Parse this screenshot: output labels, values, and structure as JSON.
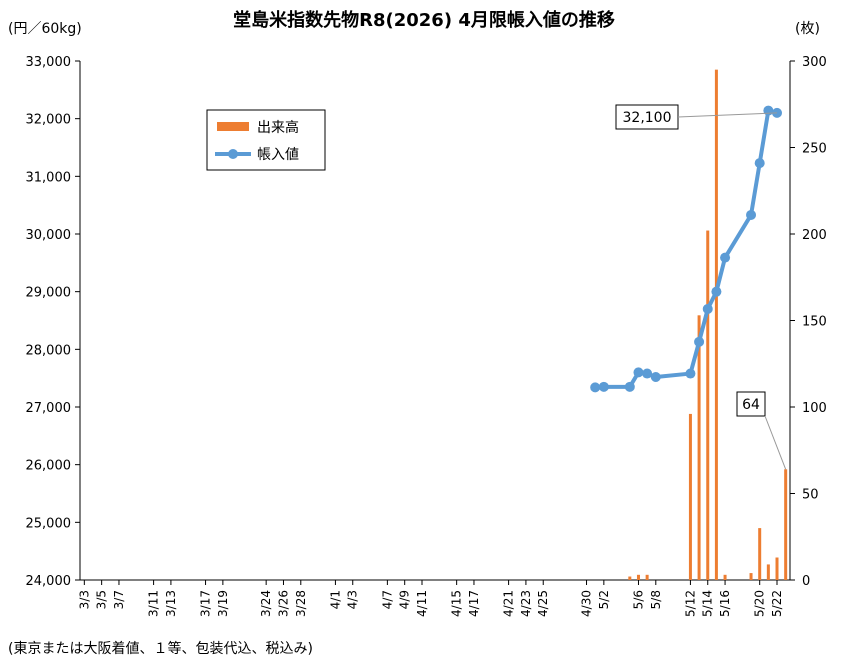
{
  "chart_data": {
    "type": "bar+line",
    "title": "堂島米指数先物R8(2026) 4月限帳入値の推移",
    "left_axis_unit": "(円／60kg)",
    "right_axis_unit": "(枚)",
    "footnote": "(東京または大阪着値、１等、包装代込、税込み)",
    "left_ylim": [
      24000,
      33000
    ],
    "left_ticks": [
      "24,000",
      "25,000",
      "26,000",
      "27,000",
      "28,000",
      "29,000",
      "30,000",
      "31,000",
      "32,000",
      "33,000"
    ],
    "right_ylim": [
      0,
      300
    ],
    "right_ticks": [
      "0",
      "50",
      "100",
      "150",
      "200",
      "250",
      "300"
    ],
    "x_tick_labels": [
      "3/3",
      "3/5",
      "3/7",
      "3/11",
      "3/13",
      "3/17",
      "3/19",
      "3/24",
      "3/26",
      "3/28",
      "4/1",
      "4/3",
      "4/7",
      "4/9",
      "4/11",
      "4/15",
      "4/17",
      "4/21",
      "4/23",
      "4/25",
      "4/30",
      "5/2",
      "5/6",
      "5/8",
      "5/12",
      "5/14",
      "5/16",
      "5/20",
      "5/22"
    ],
    "series": [
      {
        "name": "出来高",
        "type": "bar",
        "axis": "right",
        "color": "#ED7D31",
        "points": [
          {
            "x": "5/5",
            "y": 2
          },
          {
            "x": "5/6",
            "y": 3
          },
          {
            "x": "5/7",
            "y": 3
          },
          {
            "x": "5/12",
            "y": 96
          },
          {
            "x": "5/13",
            "y": 153
          },
          {
            "x": "5/14",
            "y": 202
          },
          {
            "x": "5/15",
            "y": 295
          },
          {
            "x": "5/16",
            "y": 3
          },
          {
            "x": "5/19",
            "y": 4
          },
          {
            "x": "5/20",
            "y": 30
          },
          {
            "x": "5/21",
            "y": 9
          },
          {
            "x": "5/22",
            "y": 13
          },
          {
            "x": "5/23",
            "y": 64
          }
        ]
      },
      {
        "name": "帳入値",
        "type": "line",
        "axis": "left",
        "color": "#5B9BD5",
        "points": [
          {
            "x": "5/1",
            "y": 27340
          },
          {
            "x": "5/2",
            "y": 27350
          },
          {
            "x": "5/5",
            "y": 27350
          },
          {
            "x": "5/6",
            "y": 27600
          },
          {
            "x": "5/7",
            "y": 27580
          },
          {
            "x": "5/8",
            "y": 27520
          },
          {
            "x": "5/12",
            "y": 27580
          },
          {
            "x": "5/13",
            "y": 28130
          },
          {
            "x": "5/14",
            "y": 28700
          },
          {
            "x": "5/15",
            "y": 29000
          },
          {
            "x": "5/16",
            "y": 29590
          },
          {
            "x": "5/19",
            "y": 30330
          },
          {
            "x": "5/20",
            "y": 31230
          },
          {
            "x": "5/21",
            "y": 32140
          },
          {
            "x": "5/22",
            "y": 32100
          }
        ]
      }
    ],
    "annotations": [
      {
        "text": "32,100",
        "series": "帳入値",
        "x": "5/22"
      },
      {
        "text": "64",
        "series": "出来高",
        "x": "5/23"
      }
    ],
    "legend": {
      "position": "top-left",
      "items": [
        "出来高",
        "帳入値"
      ]
    },
    "grid": false
  }
}
